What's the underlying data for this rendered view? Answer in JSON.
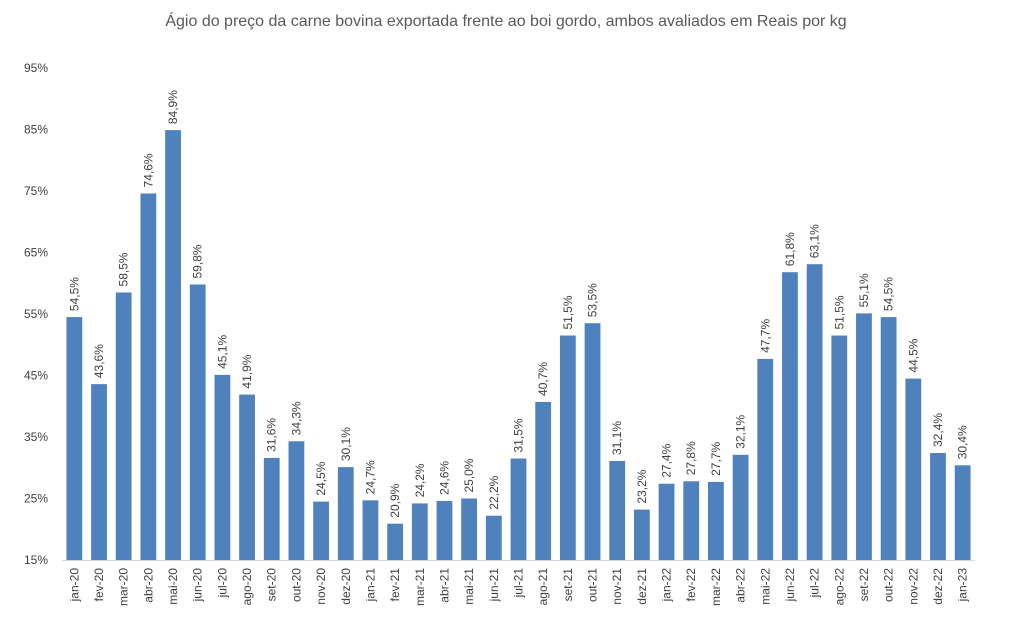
{
  "chart_data": {
    "type": "bar",
    "title": "Ágio do preço da carne bovina exportada frente ao boi gordo, ambos avaliados em Reais por kg",
    "xlabel": "",
    "ylabel": "",
    "ylim": [
      15,
      95
    ],
    "yticks": [
      15,
      25,
      35,
      45,
      55,
      65,
      75,
      85,
      95
    ],
    "ytick_labels": [
      "15%",
      "25%",
      "35%",
      "45%",
      "55%",
      "65%",
      "75%",
      "85%",
      "95%"
    ],
    "grid": false,
    "legend": "none",
    "bar_color": "#4f81bd",
    "categories": [
      "jan-20",
      "fev-20",
      "mar-20",
      "abr-20",
      "mai-20",
      "jun-20",
      "jul-20",
      "ago-20",
      "set-20",
      "out-20",
      "nov-20",
      "dez-20",
      "jan-21",
      "fev-21",
      "mar-21",
      "abr-21",
      "mai-21",
      "jun-21",
      "jul-21",
      "ago-21",
      "set-21",
      "out-21",
      "nov-21",
      "dez-21",
      "jan-22",
      "fev-22",
      "mar-22",
      "abr-22",
      "mai-22",
      "jun-22",
      "jul-22",
      "ago-22",
      "set-22",
      "out-22",
      "nov-22",
      "dez-22",
      "jan-23"
    ],
    "values": [
      54.5,
      43.6,
      58.5,
      74.6,
      84.9,
      59.8,
      45.1,
      41.9,
      31.6,
      34.3,
      24.5,
      30.1,
      24.7,
      20.9,
      24.2,
      24.6,
      25.0,
      22.2,
      31.5,
      40.7,
      51.5,
      53.5,
      31.1,
      23.2,
      27.4,
      27.8,
      27.7,
      32.1,
      47.7,
      61.8,
      63.1,
      51.5,
      55.1,
      54.5,
      44.5,
      32.4,
      30.4
    ],
    "data_labels": [
      "54,5%",
      "43,6%",
      "58,5%",
      "74,6%",
      "84,9%",
      "59,8%",
      "45,1%",
      "41,9%",
      "31,6%",
      "34,3%",
      "24,5%",
      "30,1%",
      "24,7%",
      "20,9%",
      "24,2%",
      "24,6%",
      "25,0%",
      "22,2%",
      "31,5%",
      "40,7%",
      "51,5%",
      "53,5%",
      "31,1%",
      "23,2%",
      "27,4%",
      "27,8%",
      "27,7%",
      "32,1%",
      "47,7%",
      "61,8%",
      "63,1%",
      "51,5%",
      "55,1%",
      "54,5%",
      "44,5%",
      "32,4%",
      "30,4%"
    ]
  }
}
